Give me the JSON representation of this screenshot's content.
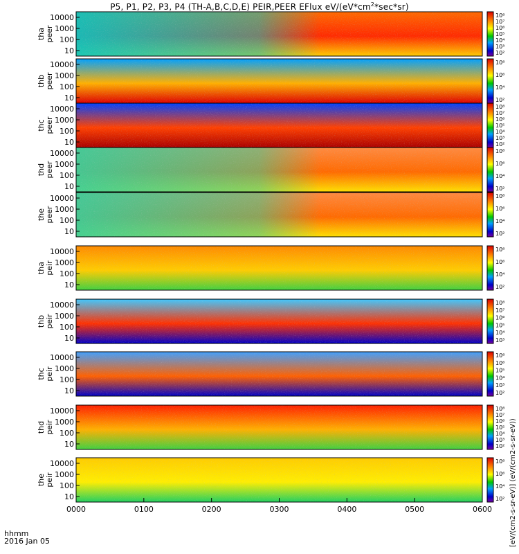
{
  "title_prefix": "P5, P1, P2, P3, P4 (TH-A,B,C,D,E) PEIR,PEER EFlux eV/(eV*cm",
  "title_sup": "2",
  "title_suffix": "*sec*sr)",
  "colorbar_label": "[eV/(cm2-s-sr-eV)] (eV/(cm2-s-sr-eV))",
  "colors": {
    "low": "#0000c8",
    "mid": "#00c800",
    "high": "#ffff00",
    "max": "#dd0000"
  },
  "chart_data": {
    "type": "heatmap",
    "xlabel_line1": "hhmm",
    "xlabel_line2": "2016 Jan 05",
    "x_ticks": [
      "0000",
      "0100",
      "0200",
      "0300",
      "0400",
      "0500",
      "0600"
    ],
    "y_scale": "log",
    "panels": [
      {
        "name": "tha peer",
        "label_top": "tha",
        "label_bottom": "peer",
        "y_ticks": [
          "10000",
          "1000",
          "100",
          "10"
        ],
        "cb_ticks": [
          "10⁸",
          "10⁷",
          "10⁶",
          "10⁵",
          "10⁴",
          "10³",
          "10²"
        ]
      },
      {
        "name": "thb peer",
        "label_top": "thb",
        "label_bottom": "peer",
        "y_ticks": [
          "10000",
          "1000",
          "100",
          "10"
        ],
        "cb_ticks": [
          "10⁸",
          "10⁶",
          "10⁴",
          "10²"
        ]
      },
      {
        "name": "thc peer",
        "label_top": "thc",
        "label_bottom": "peer",
        "y_ticks": [
          "10000",
          "1000",
          "100",
          "10"
        ],
        "cb_ticks": [
          "10⁸",
          "10⁷",
          "10⁶",
          "10⁵",
          "10⁴",
          "10³",
          "10²"
        ]
      },
      {
        "name": "thd peer",
        "label_top": "thd",
        "label_bottom": "peer",
        "y_ticks": [
          "10000",
          "1000",
          "100",
          "10"
        ],
        "cb_ticks": [
          "10⁸",
          "10⁶",
          "10⁴",
          "10²"
        ]
      },
      {
        "name": "the peer",
        "label_top": "the",
        "label_bottom": "peer",
        "y_ticks": [
          "10000",
          "1000",
          "100",
          "10"
        ],
        "cb_ticks": [
          "10⁸",
          "10⁶",
          "10⁴",
          "10²"
        ]
      },
      {
        "name": "tha peir",
        "label_top": "tha",
        "label_bottom": "peir",
        "y_ticks": [
          "10000",
          "1000",
          "100",
          "10"
        ],
        "cb_ticks": [
          "10⁸",
          "10⁶",
          "10⁴",
          "10²"
        ]
      },
      {
        "name": "thb peir",
        "label_top": "thb",
        "label_bottom": "peir",
        "y_ticks": [
          "10000",
          "1000",
          "100",
          "10"
        ],
        "cb_ticks": [
          "10⁸",
          "10⁷",
          "10⁶",
          "10⁵",
          "10⁴",
          "10³"
        ]
      },
      {
        "name": "thc peir",
        "label_top": "thc",
        "label_bottom": "peir",
        "y_ticks": [
          "10000",
          "1000",
          "100",
          "10"
        ],
        "cb_ticks": [
          "10⁸",
          "10⁶",
          "10⁵",
          "10⁴",
          "10³",
          "10²"
        ]
      },
      {
        "name": "thd peir",
        "label_top": "thd",
        "label_bottom": "peir",
        "y_ticks": [
          "10000",
          "1000",
          "100",
          "10"
        ],
        "cb_ticks": [
          "10⁸",
          "10⁷",
          "10⁶",
          "10⁵",
          "10⁴",
          "10³",
          "10²"
        ]
      },
      {
        "name": "the peir",
        "label_top": "the",
        "label_bottom": "peir",
        "y_ticks": [
          "10000",
          "1000",
          "100",
          "10"
        ],
        "cb_ticks": [
          "10⁸",
          "10⁶",
          "10⁴",
          "10²"
        ]
      }
    ]
  }
}
